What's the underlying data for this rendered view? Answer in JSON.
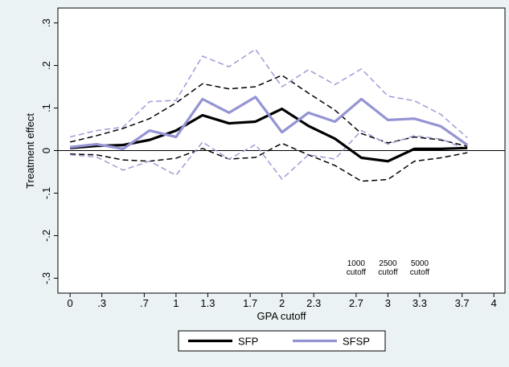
{
  "chart_data": {
    "type": "line",
    "x_label": "GPA cutoff",
    "y_label": "Treatment effect",
    "x": [
      0,
      0.25,
      0.5,
      0.75,
      1,
      1.25,
      1.5,
      1.75,
      2,
      2.25,
      2.5,
      2.75,
      3,
      3.25,
      3.5,
      3.75
    ],
    "series": [
      {
        "name": "SFP",
        "color": "#000000",
        "ci_color": "#000000",
        "values": [
          0.006,
          0.011,
          0.013,
          0.025,
          0.047,
          0.083,
          0.064,
          0.068,
          0.098,
          0.058,
          0.028,
          -0.017,
          -0.025,
          0.004,
          0.004,
          0.006
        ],
        "ci_upper": [
          0.02,
          0.035,
          0.052,
          0.075,
          0.112,
          0.157,
          0.145,
          0.15,
          0.177,
          0.135,
          0.095,
          0.04,
          0.018,
          0.032,
          0.025,
          0.01
        ],
        "ci_lower": [
          -0.008,
          -0.01,
          -0.022,
          -0.025,
          -0.018,
          0.005,
          -0.02,
          -0.016,
          0.017,
          -0.01,
          -0.035,
          -0.072,
          -0.068,
          -0.025,
          -0.017,
          -0.005
        ]
      },
      {
        "name": "SFSP",
        "color": "#9494d4",
        "ci_color": "#9c9cd8",
        "values": [
          0.008,
          0.015,
          0.004,
          0.047,
          0.032,
          0.121,
          0.089,
          0.126,
          0.043,
          0.089,
          0.068,
          0.121,
          0.072,
          0.075,
          0.057,
          0.013
        ],
        "ci_upper": [
          0.032,
          0.047,
          0.055,
          0.115,
          0.118,
          0.222,
          0.197,
          0.238,
          0.15,
          0.19,
          0.155,
          0.192,
          0.128,
          0.117,
          0.085,
          0.03
        ],
        "ci_lower": [
          -0.01,
          -0.015,
          -0.046,
          -0.025,
          -0.058,
          0.02,
          -0.02,
          0.014,
          -0.067,
          -0.01,
          -0.02,
          0.047,
          0.015,
          0.035,
          0.027,
          0.002
        ]
      }
    ],
    "xlim": [
      -0.115,
      4.105
    ],
    "ylim": [
      -0.335,
      0.335
    ],
    "xticks": [
      0,
      {
        "value": 0.3,
        "label": ".3"
      },
      {
        "value": 0.7,
        "label": ".7"
      },
      1,
      1.3,
      1.7,
      2,
      2.3,
      2.7,
      3,
      3.3,
      3.7,
      4
    ],
    "yticks": [
      {
        "value": -0.3,
        "label": "-.3"
      },
      {
        "value": -0.2,
        "label": "-.2"
      },
      {
        "value": -0.1,
        "label": "-.1"
      },
      0,
      {
        "value": 0.1,
        "label": ".1"
      },
      {
        "value": 0.2,
        "label": ".2"
      },
      {
        "value": 0.3,
        "label": ".3"
      }
    ],
    "annotations": [
      [
        "1000",
        "cutoff"
      ],
      [
        "2500",
        "cutoff"
      ],
      [
        "5000",
        "cutoff"
      ]
    ],
    "legend": "bottom"
  }
}
